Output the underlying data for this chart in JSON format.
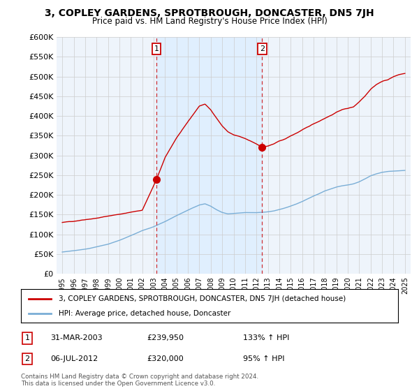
{
  "title": "3, COPLEY GARDENS, SPROTBROUGH, DONCASTER, DN5 7JH",
  "subtitle": "Price paid vs. HM Land Registry's House Price Index (HPI)",
  "ylabel_ticks": [
    "£0",
    "£50K",
    "£100K",
    "£150K",
    "£200K",
    "£250K",
    "£300K",
    "£350K",
    "£400K",
    "£450K",
    "£500K",
    "£550K",
    "£600K"
  ],
  "ylim": [
    0,
    600000
  ],
  "yticks": [
    0,
    50000,
    100000,
    150000,
    200000,
    250000,
    300000,
    350000,
    400000,
    450000,
    500000,
    550000,
    600000
  ],
  "sale1_year": 2003.25,
  "sale1_price": 239950,
  "sale1_date": "31-MAR-2003",
  "sale1_pct": "133%",
  "sale2_year": 2012.5,
  "sale2_price": 320000,
  "sale2_date": "06-JUL-2012",
  "sale2_pct": "95%",
  "red_color": "#cc0000",
  "blue_color": "#7aaed6",
  "shade_color": "#ddeeff",
  "legend1": "3, COPLEY GARDENS, SPROTBROUGH, DONCASTER, DN5 7JH (detached house)",
  "legend2": "HPI: Average price, detached house, Doncaster",
  "footer1": "Contains HM Land Registry data © Crown copyright and database right 2024.",
  "footer2": "This data is licensed under the Open Government Licence v3.0.",
  "red_xpoints": [
    1995,
    1996,
    1997,
    1998,
    1999,
    2000,
    2001,
    2002,
    2003.25,
    2004,
    2005,
    2006,
    2007,
    2007.5,
    2008,
    2008.5,
    2009,
    2009.5,
    2010,
    2010.5,
    2011,
    2011.5,
    2012,
    2012.5,
    2013,
    2013.5,
    2014,
    2014.5,
    2015,
    2015.5,
    2016,
    2016.5,
    2017,
    2017.5,
    2018,
    2018.5,
    2019,
    2019.5,
    2020,
    2020.5,
    2021,
    2021.5,
    2022,
    2022.5,
    2023,
    2023.5,
    2024,
    2024.5,
    2025
  ],
  "red_ypoints": [
    130000,
    133000,
    138000,
    142000,
    147000,
    152000,
    157000,
    162000,
    239950,
    295000,
    345000,
    385000,
    425000,
    430000,
    415000,
    395000,
    375000,
    360000,
    352000,
    348000,
    342000,
    335000,
    328000,
    320000,
    323000,
    328000,
    335000,
    340000,
    348000,
    355000,
    363000,
    370000,
    378000,
    385000,
    393000,
    400000,
    408000,
    415000,
    418000,
    422000,
    435000,
    450000,
    468000,
    480000,
    488000,
    492000,
    500000,
    505000,
    508000
  ],
  "hpi_xpoints": [
    1995,
    1996,
    1997,
    1998,
    1999,
    2000,
    2001,
    2002,
    2003,
    2004,
    2005,
    2006,
    2007,
    2007.5,
    2008,
    2008.5,
    2009,
    2009.5,
    2010,
    2010.5,
    2011,
    2011.5,
    2012,
    2012.5,
    2013,
    2013.5,
    2014,
    2014.5,
    2015,
    2015.5,
    2016,
    2016.5,
    2017,
    2017.5,
    2018,
    2018.5,
    2019,
    2019.5,
    2020,
    2020.5,
    2021,
    2021.5,
    2022,
    2022.5,
    2023,
    2023.5,
    2024,
    2024.5,
    2025
  ],
  "hpi_ypoints": [
    55000,
    58000,
    62000,
    68000,
    75000,
    85000,
    97000,
    110000,
    120000,
    133000,
    148000,
    162000,
    175000,
    178000,
    172000,
    163000,
    156000,
    152000,
    153000,
    154000,
    155000,
    155000,
    155000,
    156000,
    157000,
    159000,
    163000,
    167000,
    172000,
    177000,
    183000,
    190000,
    197000,
    203000,
    210000,
    215000,
    220000,
    223000,
    225000,
    228000,
    233000,
    240000,
    248000,
    253000,
    257000,
    259000,
    260000,
    261000,
    262000
  ]
}
